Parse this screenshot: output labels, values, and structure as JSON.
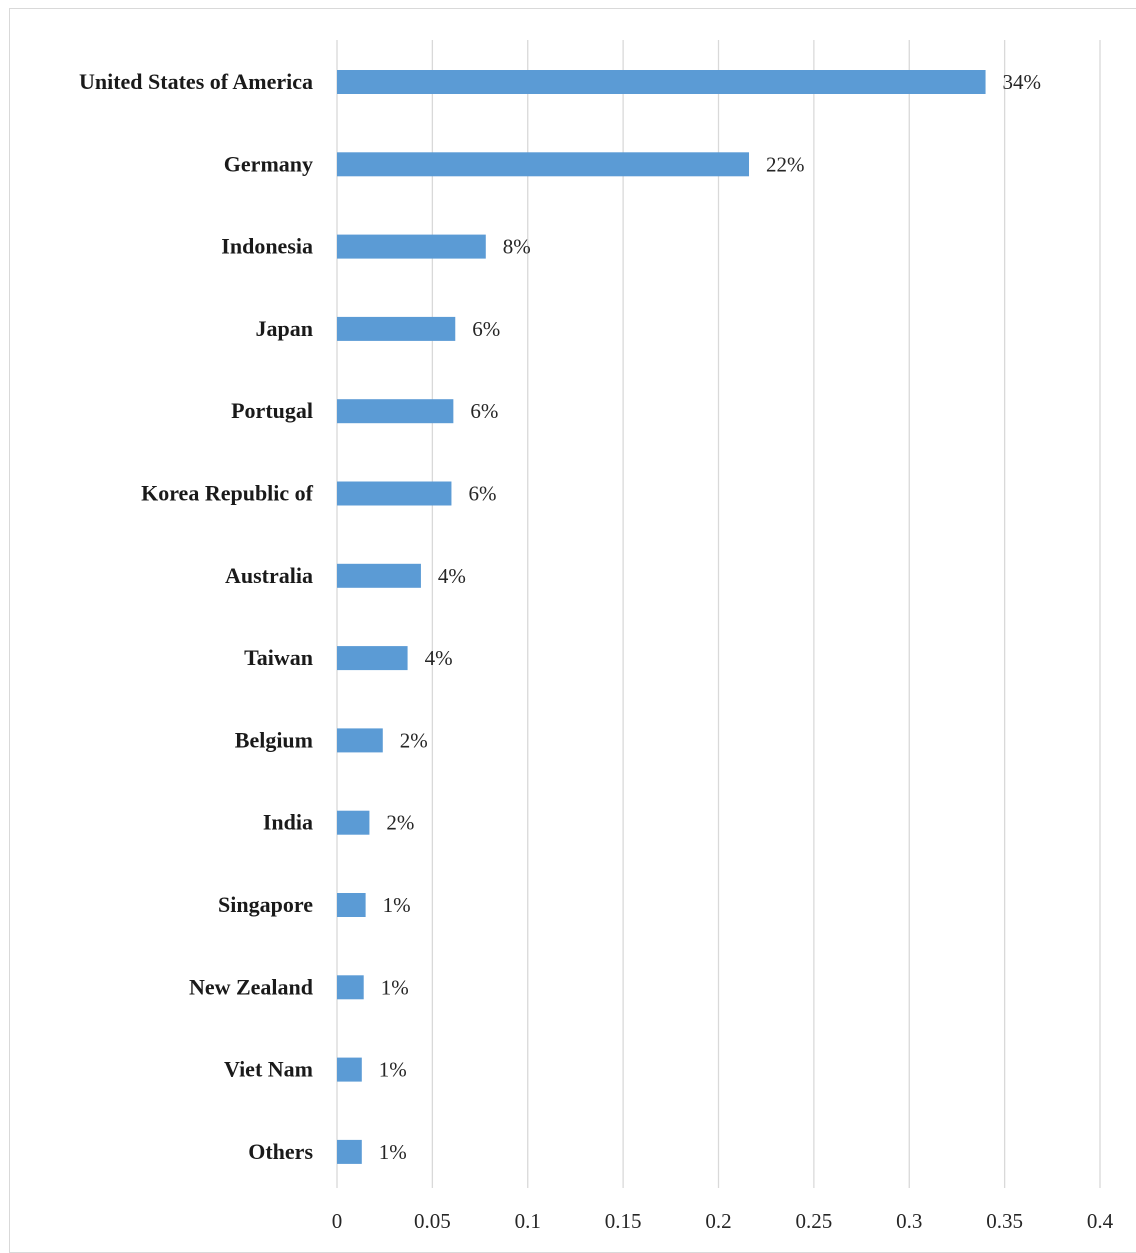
{
  "chart_data": {
    "type": "bar",
    "orientation": "horizontal",
    "categories": [
      "United States of America",
      "Germany",
      "Indonesia",
      "Japan",
      "Portugal",
      "Korea Republic of",
      "Australia",
      "Taiwan",
      "Belgium",
      "India",
      "Singapore",
      "New Zealand",
      "Viet Nam",
      "Others"
    ],
    "values": [
      0.34,
      0.216,
      0.078,
      0.062,
      0.061,
      0.06,
      0.044,
      0.037,
      0.024,
      0.017,
      0.015,
      0.014,
      0.013,
      0.013
    ],
    "data_labels": [
      "34%",
      "22%",
      "8%",
      "6%",
      "6%",
      "6%",
      "4%",
      "4%",
      "2%",
      "2%",
      "1%",
      "1%",
      "1%",
      "1%"
    ],
    "xlim": [
      0,
      0.4
    ],
    "x_ticks": [
      "0",
      "0.05",
      "0.1",
      "0.15",
      "0.2",
      "0.25",
      "0.3",
      "0.35",
      "0.4"
    ],
    "title": "",
    "xlabel": "",
    "ylabel": "",
    "grid": "vertical",
    "legend": "none",
    "bar_color": "#5b9bd5",
    "grid_color": "#d9d9d9"
  }
}
